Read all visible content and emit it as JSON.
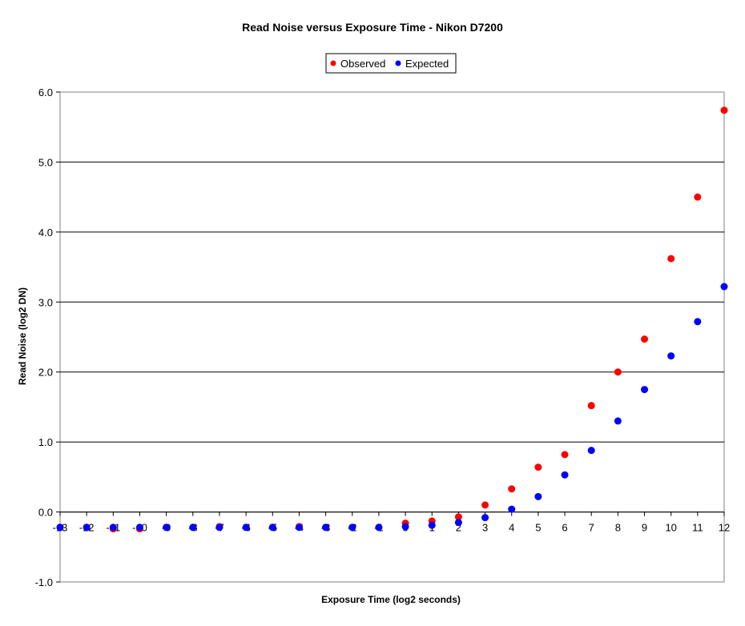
{
  "chart_data": {
    "type": "scatter",
    "title": "Read Noise versus Exposure Time - Nikon D7200",
    "xlabel": "Exposure Time (log2 seconds)",
    "ylabel": "Read Noise (log2 DN)",
    "xlim": [
      -13,
      12
    ],
    "ylim": [
      -1.0,
      6.0
    ],
    "x_ticks": [
      -13,
      -12,
      -11,
      -10,
      -9,
      -8,
      -7,
      -6,
      -5,
      -4,
      -3,
      -2,
      -1,
      0,
      1,
      2,
      3,
      4,
      5,
      6,
      7,
      8,
      9,
      10,
      11,
      12
    ],
    "x_tick_labels": [
      "-13",
      "-12",
      "-11",
      "-10",
      "-9",
      "-8",
      "-7",
      "-6",
      "-5",
      "-4",
      "-3",
      "-2",
      "-1",
      "0",
      "1",
      "2",
      "3",
      "4",
      "5",
      "6",
      "7",
      "8",
      "9",
      "10",
      "11",
      "12"
    ],
    "y_ticks": [
      -1.0,
      0.0,
      1.0,
      2.0,
      3.0,
      4.0,
      5.0,
      6.0
    ],
    "y_tick_labels": [
      "-1.0",
      "0.0",
      "1.0",
      "2.0",
      "3.0",
      "4.0",
      "5.0",
      "6.0"
    ],
    "grid": "horizontal",
    "legend_position": "top-center",
    "series": [
      {
        "name": "Observed",
        "color": "#ff0000",
        "x": [
          -13,
          -12,
          -11,
          -10,
          -9,
          -8,
          -7,
          -6,
          -5,
          -4,
          -3,
          -2,
          -1,
          0,
          1,
          2,
          3,
          4,
          5,
          6,
          7,
          8,
          9,
          10,
          11,
          12
        ],
        "y": [
          -0.22,
          -0.22,
          -0.24,
          -0.24,
          -0.22,
          -0.22,
          -0.21,
          -0.22,
          -0.22,
          -0.21,
          -0.22,
          -0.22,
          -0.22,
          -0.16,
          -0.13,
          -0.07,
          0.1,
          0.33,
          0.64,
          0.82,
          1.52,
          2.0,
          2.47,
          3.62,
          4.5,
          5.74
        ]
      },
      {
        "name": "Expected",
        "color": "#0000ff",
        "x": [
          -13,
          -12,
          -11,
          -10,
          -9,
          -8,
          -7,
          -6,
          -5,
          -4,
          -3,
          -2,
          -1,
          0,
          1,
          2,
          3,
          4,
          5,
          6,
          7,
          8,
          9,
          10,
          11,
          12
        ],
        "y": [
          -0.22,
          -0.22,
          -0.22,
          -0.22,
          -0.22,
          -0.22,
          -0.22,
          -0.22,
          -0.22,
          -0.22,
          -0.22,
          -0.22,
          -0.22,
          -0.21,
          -0.19,
          -0.15,
          -0.08,
          0.04,
          0.22,
          0.53,
          0.88,
          1.3,
          1.75,
          2.23,
          2.72,
          3.22
        ]
      }
    ]
  }
}
